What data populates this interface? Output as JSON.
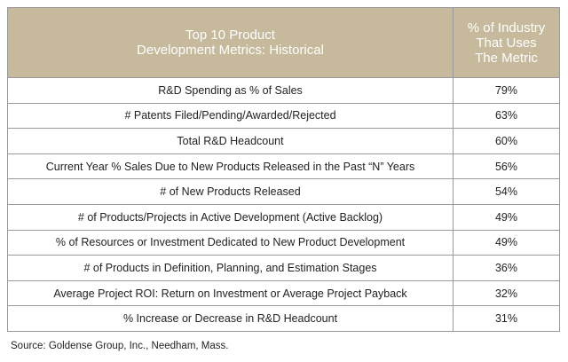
{
  "table": {
    "header": [
      "Top 10 Product\nDevelopment Metrics: Historical",
      "% of Industry\nThat Uses\nThe Metric"
    ],
    "rows": [
      [
        "R&D Spending as % of Sales",
        "79%"
      ],
      [
        "# Patents Filed/Pending/Awarded/Rejected",
        "63%"
      ],
      [
        "Total R&D Headcount",
        "60%"
      ],
      [
        "Current Year % Sales Due to New Products Released in the Past “N” Years",
        "56%"
      ],
      [
        "# of New Products Released",
        "54%"
      ],
      [
        "# of Products/Projects in Active Development (Active Backlog)",
        "49%"
      ],
      [
        "% of Resources or Investment Dedicated to New Product Development",
        "49%"
      ],
      [
        "# of Products in Definition, Planning, and Estimation Stages",
        "36%"
      ],
      [
        "Average Project ROI: Return on Investment or Average Project Payback",
        "32%"
      ],
      [
        "% Increase or Decrease in R&D Headcount",
        "31%"
      ]
    ]
  },
  "source": "Source: Goldense Group, Inc., Needham, Mass."
}
